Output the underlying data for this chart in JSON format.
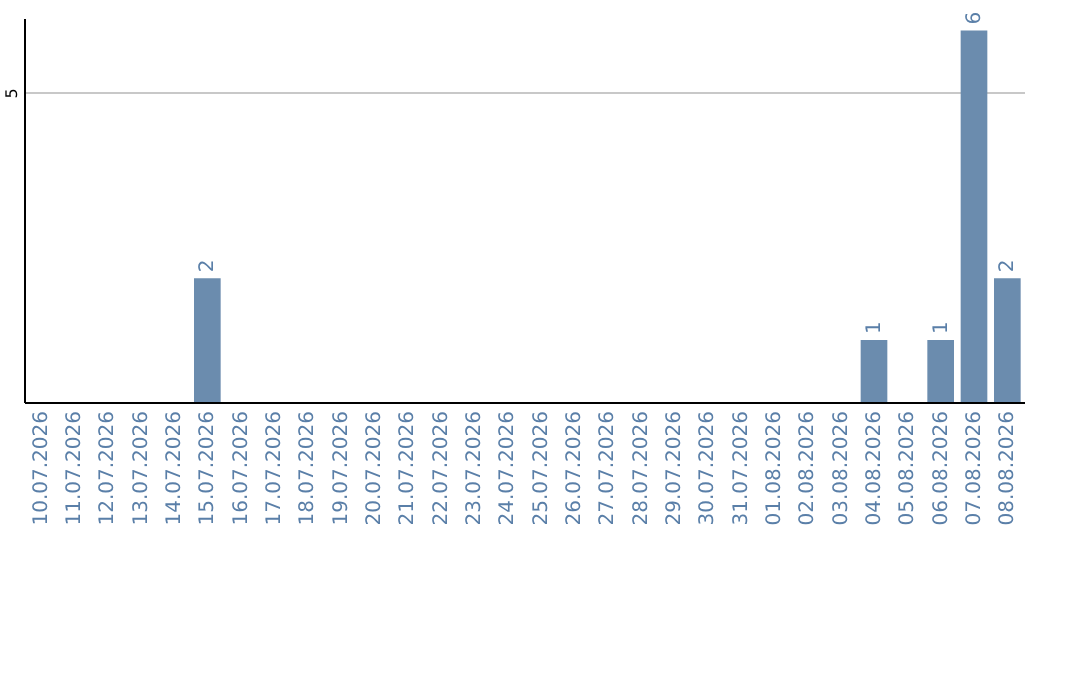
{
  "chart_data": {
    "type": "bar",
    "categories": [
      "10.07.2026",
      "11.07.2026",
      "12.07.2026",
      "13.07.2026",
      "14.07.2026",
      "15.07.2026",
      "16.07.2026",
      "17.07.2026",
      "18.07.2026",
      "19.07.2026",
      "20.07.2026",
      "21.07.2026",
      "22.07.2026",
      "23.07.2026",
      "24.07.2026",
      "25.07.2026",
      "26.07.2026",
      "27.07.2026",
      "28.07.2026",
      "29.07.2026",
      "30.07.2026",
      "31.07.2026",
      "01.08.2026",
      "02.08.2026",
      "03.08.2026",
      "04.08.2026",
      "05.08.2026",
      "06.08.2026",
      "07.08.2026",
      "08.08.2026"
    ],
    "values": [
      null,
      null,
      null,
      null,
      null,
      2,
      null,
      null,
      null,
      null,
      null,
      null,
      null,
      null,
      null,
      null,
      null,
      null,
      null,
      null,
      null,
      null,
      null,
      null,
      null,
      1,
      null,
      1,
      6,
      2
    ],
    "color": "#6b8cae",
    "ylim": [
      0,
      6.2
    ],
    "yticks": [
      5
    ],
    "grid": "y",
    "data_labels": true
  }
}
